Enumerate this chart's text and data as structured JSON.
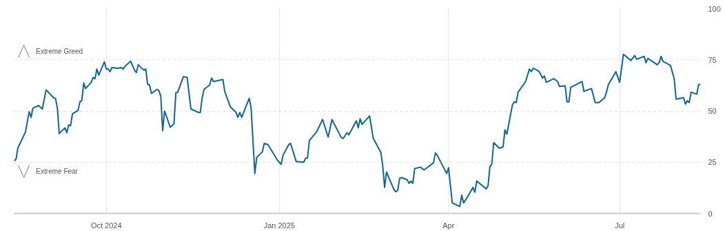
{
  "chart_data": {
    "type": "line",
    "x": [
      "2024-08-13",
      "2024-08-14",
      "2024-08-15",
      "2024-08-19",
      "2024-08-21",
      "2024-08-22",
      "2024-08-23",
      "2024-08-26",
      "2024-08-28",
      "2024-08-30",
      "2024-09-03",
      "2024-09-04",
      "2024-09-05",
      "2024-09-06",
      "2024-09-09",
      "2024-09-10",
      "2024-09-11",
      "2024-09-12",
      "2024-09-13",
      "2024-09-16",
      "2024-09-17",
      "2024-09-18",
      "2024-09-19",
      "2024-09-20",
      "2024-09-23",
      "2024-09-24",
      "2024-09-25",
      "2024-09-26",
      "2024-09-27",
      "2024-09-30",
      "2024-10-01",
      "2024-10-02",
      "2024-10-03",
      "2024-10-04",
      "2024-10-07",
      "2024-10-09",
      "2024-10-10",
      "2024-10-11",
      "2024-10-14",
      "2024-10-16",
      "2024-10-17",
      "2024-10-18",
      "2024-10-21",
      "2024-10-22",
      "2024-10-23",
      "2024-10-24",
      "2024-10-25",
      "2024-10-28",
      "2024-10-29",
      "2024-10-30",
      "2024-10-31",
      "2024-11-01",
      "2024-11-04",
      "2024-11-06",
      "2024-11-07",
      "2024-11-08",
      "2024-11-11",
      "2024-11-13",
      "2024-11-15",
      "2024-11-19",
      "2024-11-20",
      "2024-11-21",
      "2024-11-22",
      "2024-11-25",
      "2024-11-26",
      "2024-11-27",
      "2024-12-02",
      "2024-12-03",
      "2024-12-06",
      "2024-12-09",
      "2024-12-10",
      "2024-12-11",
      "2024-12-12",
      "2024-12-16",
      "2024-12-17",
      "2024-12-19",
      "2024-12-20",
      "2024-12-23",
      "2024-12-24",
      "2024-12-26",
      "2024-12-31",
      "2025-01-02",
      "2025-01-03",
      "2025-01-06",
      "2025-01-07",
      "2025-01-10",
      "2025-01-14",
      "2025-01-15",
      "2025-01-16",
      "2025-01-17",
      "2025-01-21",
      "2025-01-24",
      "2025-01-27",
      "2025-01-29",
      "2025-02-03",
      "2025-02-04",
      "2025-02-06",
      "2025-02-07",
      "2025-02-11",
      "2025-02-12",
      "2025-02-13",
      "2025-02-14",
      "2025-02-18",
      "2025-02-20",
      "2025-02-24",
      "2025-02-25",
      "2025-02-26",
      "2025-02-27",
      "2025-03-03",
      "2025-03-04",
      "2025-03-05",
      "2025-03-06",
      "2025-03-07",
      "2025-03-10",
      "2025-03-11",
      "2025-03-12",
      "2025-03-13",
      "2025-03-14",
      "2025-03-17",
      "2025-03-19",
      "2025-03-24",
      "2025-03-25",
      "2025-03-26",
      "2025-03-31",
      "2025-04-01",
      "2025-04-03",
      "2025-04-07",
      "2025-04-08",
      "2025-04-09",
      "2025-04-11",
      "2025-04-14",
      "2025-04-15",
      "2025-04-16",
      "2025-04-21",
      "2025-04-22",
      "2025-04-23",
      "2025-04-24",
      "2025-04-25",
      "2025-04-28",
      "2025-04-30",
      "2025-05-01",
      "2025-05-02",
      "2025-05-05",
      "2025-05-06",
      "2025-05-07",
      "2025-05-08",
      "2025-05-12",
      "2025-05-14",
      "2025-05-15",
      "2025-05-16",
      "2025-05-19",
      "2025-05-21",
      "2025-05-22",
      "2025-05-23",
      "2025-05-27",
      "2025-05-29",
      "2025-05-30",
      "2025-06-02",
      "2025-06-03",
      "2025-06-04",
      "2025-06-05",
      "2025-06-09",
      "2025-06-11",
      "2025-06-12",
      "2025-06-16",
      "2025-06-18",
      "2025-06-20",
      "2025-06-23",
      "2025-06-24",
      "2025-06-25",
      "2025-06-29",
      "2025-07-01",
      "2025-07-03",
      "2025-07-07",
      "2025-07-09",
      "2025-07-10",
      "2025-07-14",
      "2025-07-15",
      "2025-07-16",
      "2025-07-21",
      "2025-07-22",
      "2025-07-23",
      "2025-07-24",
      "2025-07-28",
      "2025-07-30",
      "2025-07-31",
      "2025-08-04",
      "2025-08-05",
      "2025-08-06",
      "2025-08-07",
      "2025-08-08",
      "2025-08-11",
      "2025-08-12",
      "2025-08-13"
    ],
    "series": [
      {
        "color": "#0e6591",
        "values": [
          25.7,
          26.4,
          32,
          39.7,
          49.7,
          46.9,
          51.4,
          52.7,
          51,
          60.3,
          56.5,
          56.2,
          51.4,
          39,
          41.8,
          39.4,
          43.2,
          42.8,
          48.6,
          50.3,
          54.5,
          55.1,
          63.7,
          61,
          64,
          66.4,
          65.8,
          70.5,
          67.5,
          74,
          70.5,
          70.5,
          69.2,
          71.2,
          70.9,
          71.2,
          70.5,
          71.9,
          74.3,
          69.9,
          68.8,
          72.6,
          69.9,
          70.5,
          63,
          62.7,
          58.6,
          60.6,
          59.9,
          57.2,
          40.4,
          50,
          42.1,
          43.8,
          58.9,
          59.2,
          66.8,
          66.4,
          51,
          49.3,
          49.3,
          56.5,
          60.6,
          62.7,
          66.1,
          64.4,
          65.4,
          59.6,
          52,
          49.3,
          46.9,
          49.3,
          46.9,
          56.2,
          51.7,
          19.5,
          27.4,
          30.1,
          34.2,
          33.6,
          26,
          24,
          28.4,
          33.6,
          34.2,
          25.3,
          25,
          27,
          27,
          35.6,
          40,
          45.9,
          37.3,
          45.9,
          37,
          36.6,
          39.4,
          38.4,
          45.2,
          41.8,
          46.2,
          43.5,
          47.6,
          36.6,
          29.8,
          23.3,
          12.7,
          20.2,
          11.6,
          10.6,
          11.3,
          17.1,
          17.5,
          16.4,
          14.7,
          15.8,
          14.7,
          21.9,
          22.6,
          21.2,
          24.7,
          29.5,
          28.4,
          19.5,
          22.3,
          5.1,
          3.4,
          8.9,
          5.1,
          7.9,
          12.7,
          10.3,
          15.8,
          12,
          13.4,
          22.9,
          24,
          34.6,
          31.8,
          32.5,
          40.8,
          38.7,
          53.1,
          54.5,
          54.1,
          59.2,
          64.4,
          70.5,
          69.2,
          70.9,
          69.5,
          66.1,
          67.1,
          64,
          65.8,
          64.4,
          62,
          62.3,
          54.5,
          54.5,
          61.6,
          63.4,
          64.4,
          59.6,
          61,
          54.1,
          54.1,
          56.5,
          59.2,
          63,
          69.2,
          64,
          77.7,
          74.7,
          77.1,
          75.3,
          76.7,
          73.6,
          75.7,
          72.6,
          73.6,
          76.7,
          74.3,
          72.3,
          65.8,
          55.8,
          56.5,
          53.4,
          55.1,
          54.1,
          59.2,
          58.2,
          63,
          63
        ]
      }
    ],
    "xlim": [
      "2024-08-13",
      "2025-08-13"
    ],
    "xticks": [
      {
        "value": "2024-10-01",
        "label": "Oct 2024"
      },
      {
        "value": "2025-01-01",
        "label": "Jan 2025"
      },
      {
        "value": "2025-04-01",
        "label": "Apr"
      },
      {
        "value": "2025-07-01",
        "label": "Jul"
      }
    ],
    "ylim": [
      0,
      100
    ],
    "yticks": [
      0,
      25,
      50,
      75,
      100
    ],
    "grid": true,
    "line_style": "solid",
    "marker": "none",
    "annotations": [
      "Extreme Greed",
      "Extreme Fear"
    ]
  }
}
